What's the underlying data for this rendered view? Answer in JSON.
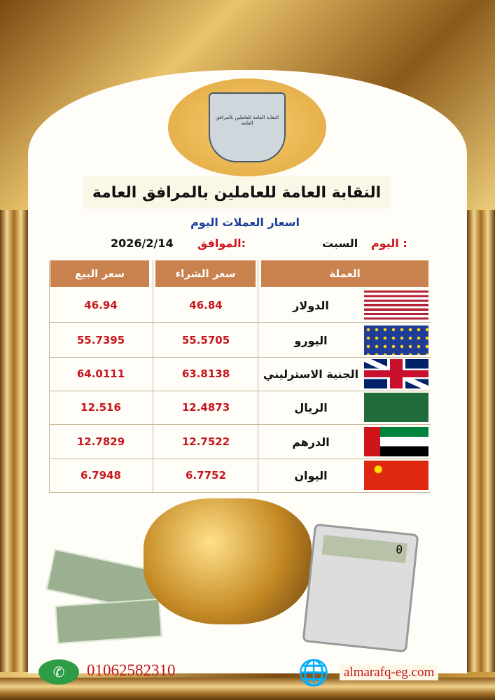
{
  "header": {
    "logo_text": "النقابة العامة للعاملين بالمرافق العامة",
    "title": "النقابة العامة للعاملين بالمرافق العامة",
    "subtitle": "اسعار العملات اليوم",
    "day_label": "اليوم :",
    "day_value": "السبت",
    "date_label": "الموافق:",
    "date_value": "2026/2/14"
  },
  "table": {
    "headers": {
      "currency": "العملة",
      "buy": "سعر الشراء",
      "sell": "سعر البيع"
    },
    "rows": [
      {
        "flag": "us-flag",
        "name": "الدولار",
        "buy": "46.84",
        "sell": "46.94"
      },
      {
        "flag": "eu-flag",
        "name": "اليورو",
        "buy": "55.5705",
        "sell": "55.7395"
      },
      {
        "flag": "uk-flag",
        "name": "الجنية الاسترليني",
        "buy": "63.8138",
        "sell": "64.0111"
      },
      {
        "flag": "saudi-flag",
        "name": "الريال",
        "buy": "12.4873",
        "sell": "12.516"
      },
      {
        "flag": "uae-flag",
        "name": "الدرهم",
        "buy": "12.7522",
        "sell": "12.7829"
      },
      {
        "flag": "china-flag",
        "name": "اليوان",
        "buy": "6.7752",
        "sell": "6.7948"
      }
    ]
  },
  "calculator_display": "0",
  "footer": {
    "phone": "01062582310",
    "website": "almarafq-eg.com"
  },
  "colors": {
    "header_bg": "#c9824e",
    "value_red": "#c4161c",
    "subtitle_blue": "#1b3d9b",
    "gold": "#d9a94a"
  }
}
